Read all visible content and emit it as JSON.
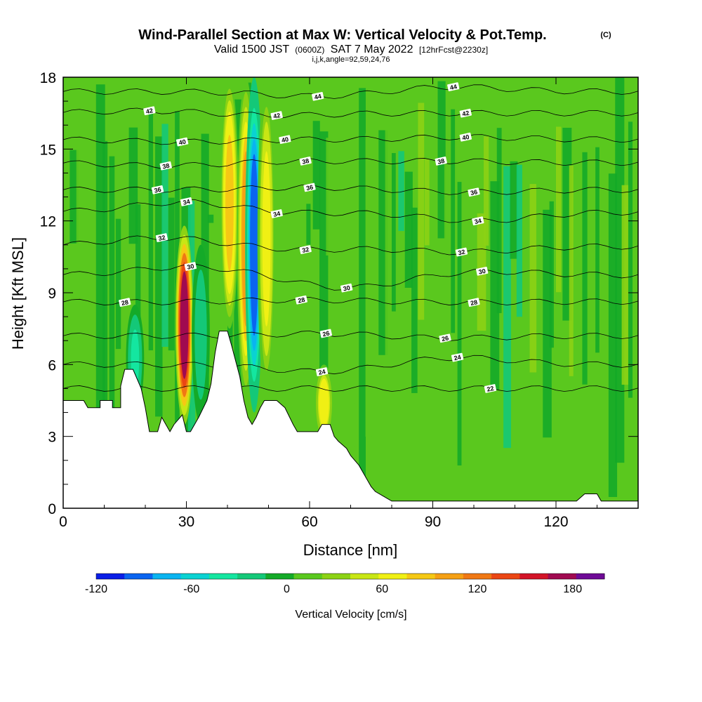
{
  "title": {
    "main": "Wind-Parallel Section at Max W: Vertical Velocity & Pot.Temp.",
    "mark": "(C)",
    "valid_prefix": "Valid 1500 JST",
    "valid_utc": "(0600Z)",
    "valid_date": "SAT 7 May 2022",
    "forecast": "[12hrFcst@2230z]",
    "indices": "i,j,k,angle=92,59,24,76"
  },
  "chart_data": {
    "type": "heatmap",
    "xlabel": "Distance [nm]",
    "ylabel": "Height [Kft MSL]",
    "xlim": [
      0,
      140
    ],
    "ylim": [
      0,
      18
    ],
    "x_ticks": [
      "0",
      "30",
      "60",
      "90",
      "120"
    ],
    "y_ticks": [
      "0",
      "3",
      "6",
      "9",
      "12",
      "15",
      "18"
    ],
    "x_tick_values": [
      0,
      30,
      60,
      90,
      120
    ],
    "y_tick_values": [
      0,
      3,
      6,
      9,
      12,
      15,
      18
    ],
    "colorbar": {
      "label": "Vertical Velocity [cm/s]",
      "tick_labels": [
        "-120",
        "-60",
        "0",
        "60",
        "120",
        "180"
      ],
      "tick_values": [
        -120,
        -60,
        0,
        60,
        120,
        180
      ],
      "range": [
        -120,
        200
      ],
      "colors": [
        "#0a1ee6",
        "#0a64f0",
        "#0ab4f0",
        "#0ad2d2",
        "#14e6a0",
        "#14c878",
        "#14aa28",
        "#5ac81e",
        "#8cd214",
        "#c8e614",
        "#f0f014",
        "#f5c814",
        "#f5a014",
        "#f07814",
        "#eb4614",
        "#d21428",
        "#a00a50",
        "#6e0a96"
      ]
    },
    "terrain_profile": [
      [
        0,
        4.5
      ],
      [
        5,
        4.5
      ],
      [
        6,
        4.2
      ],
      [
        9,
        4.2
      ],
      [
        9,
        4.5
      ],
      [
        12,
        4.5
      ],
      [
        12,
        4.2
      ],
      [
        14,
        4.2
      ],
      [
        14,
        5.1
      ],
      [
        15,
        5.8
      ],
      [
        17,
        5.8
      ],
      [
        19,
        5
      ],
      [
        20,
        4.2
      ],
      [
        21,
        3.2
      ],
      [
        23,
        3.2
      ],
      [
        24,
        3.8
      ],
      [
        26,
        3.2
      ],
      [
        27,
        3.5
      ],
      [
        29,
        3.9
      ],
      [
        30,
        3.2
      ],
      [
        31,
        3.2
      ],
      [
        33,
        3.8
      ],
      [
        35,
        4.5
      ],
      [
        36,
        5.2
      ],
      [
        37,
        6.5
      ],
      [
        38,
        7.4
      ],
      [
        40,
        7.4
      ],
      [
        41,
        6.8
      ],
      [
        43,
        5.5
      ],
      [
        44,
        4.5
      ],
      [
        45,
        3.8
      ],
      [
        46,
        3.5
      ],
      [
        47,
        3.8
      ],
      [
        48,
        4.2
      ],
      [
        49,
        4.5
      ],
      [
        52,
        4.5
      ],
      [
        54,
        4.2
      ],
      [
        56,
        3.5
      ],
      [
        57,
        3.2
      ],
      [
        62,
        3.2
      ],
      [
        63,
        3.5
      ],
      [
        65,
        3.5
      ],
      [
        66,
        3.0
      ],
      [
        67,
        2.8
      ],
      [
        69,
        2.5
      ],
      [
        70,
        2.2
      ],
      [
        72,
        1.8
      ],
      [
        73,
        1.5
      ],
      [
        74,
        1.2
      ],
      [
        75,
        0.9
      ],
      [
        76,
        0.7
      ],
      [
        78,
        0.5
      ],
      [
        80,
        0.3
      ],
      [
        92,
        0.3
      ],
      [
        105,
        0.3
      ],
      [
        125,
        0.3
      ],
      [
        127,
        0.6
      ],
      [
        130,
        0.6
      ],
      [
        131,
        0.3
      ],
      [
        140,
        0.3
      ]
    ],
    "vertical_velocity_features": [
      {
        "x": 29.5,
        "height_range": [
          3.5,
          11.8
        ],
        "peak": 170
      },
      {
        "x": 40.5,
        "height_range": [
          7.5,
          18
        ],
        "peak": 90
      },
      {
        "x": 44.5,
        "height_range": [
          4.5,
          18
        ],
        "peak": 110
      },
      {
        "x": 46.5,
        "height_range": [
          4.0,
          18
        ],
        "peak": -90
      },
      {
        "x": 49.5,
        "height_range": [
          4.5,
          18
        ],
        "peak": 60
      },
      {
        "x": 63.5,
        "height_range": [
          2.8,
          6.0
        ],
        "peak": 70
      },
      {
        "x": 17.5,
        "height_range": [
          4.0,
          8.5
        ],
        "peak": -35
      },
      {
        "x": 33.5,
        "height_range": [
          3.5,
          11.0
        ],
        "peak": -25
      }
    ],
    "theta_contours": [
      {
        "value": "22",
        "label_x": 104,
        "label_y": 5.0
      },
      {
        "value": "24",
        "label_x": 63,
        "label_y": 5.7
      },
      {
        "value": "24",
        "label_x": 96,
        "label_y": 6.3
      },
      {
        "value": "26",
        "label_x": 64,
        "label_y": 7.3
      },
      {
        "value": "26",
        "label_x": 93,
        "label_y": 7.1
      },
      {
        "value": "28",
        "label_x": 15,
        "label_y": 8.6
      },
      {
        "value": "28",
        "label_x": 58,
        "label_y": 8.7
      },
      {
        "value": "28",
        "label_x": 100,
        "label_y": 8.6
      },
      {
        "value": "30",
        "label_x": 31,
        "label_y": 10.1
      },
      {
        "value": "30",
        "label_x": 69,
        "label_y": 9.2
      },
      {
        "value": "30",
        "label_x": 102,
        "label_y": 9.9
      },
      {
        "value": "32",
        "label_x": 24,
        "label_y": 11.3
      },
      {
        "value": "32",
        "label_x": 59,
        "label_y": 10.8
      },
      {
        "value": "32",
        "label_x": 97,
        "label_y": 10.7
      },
      {
        "value": "34",
        "label_x": 30,
        "label_y": 12.8
      },
      {
        "value": "34",
        "label_x": 52,
        "label_y": 12.3
      },
      {
        "value": "34",
        "label_x": 101,
        "label_y": 12.0
      },
      {
        "value": "36",
        "label_x": 23,
        "label_y": 13.3
      },
      {
        "value": "36",
        "label_x": 60,
        "label_y": 13.4
      },
      {
        "value": "36",
        "label_x": 100,
        "label_y": 13.2
      },
      {
        "value": "38",
        "label_x": 25,
        "label_y": 14.3
      },
      {
        "value": "38",
        "label_x": 59,
        "label_y": 14.5
      },
      {
        "value": "38",
        "label_x": 92,
        "label_y": 14.5
      },
      {
        "value": "40",
        "label_x": 29,
        "label_y": 15.3
      },
      {
        "value": "40",
        "label_x": 54,
        "label_y": 15.4
      },
      {
        "value": "40",
        "label_x": 98,
        "label_y": 15.5
      },
      {
        "value": "42",
        "label_x": 21,
        "label_y": 16.6
      },
      {
        "value": "42",
        "label_x": 52,
        "label_y": 16.4
      },
      {
        "value": "42",
        "label_x": 98,
        "label_y": 16.5
      },
      {
        "value": "44",
        "label_x": 62,
        "label_y": 17.2
      },
      {
        "value": "44",
        "label_x": 95,
        "label_y": 17.6
      }
    ]
  }
}
